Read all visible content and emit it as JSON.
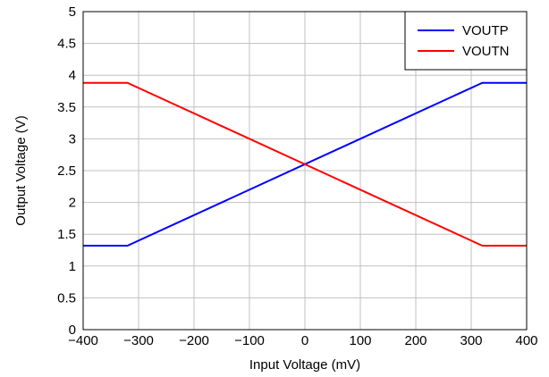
{
  "chart_data": {
    "type": "line",
    "xlabel": "Input Voltage (mV)",
    "ylabel": "Output Voltage (V)",
    "xlim": [
      -400,
      400
    ],
    "ylim": [
      0,
      5
    ],
    "x_ticks": [
      -400,
      -300,
      -200,
      -100,
      0,
      100,
      200,
      300,
      400
    ],
    "x_tick_labels": [
      "−400",
      "−300",
      "−200",
      "−100",
      "0",
      "100",
      "200",
      "300",
      "400"
    ],
    "y_ticks": [
      0,
      0.5,
      1,
      1.5,
      2,
      2.5,
      3,
      3.5,
      4,
      4.5,
      5
    ],
    "y_tick_labels": [
      "0",
      "0.5",
      "1",
      "1.5",
      "2",
      "2.5",
      "3",
      "3.5",
      "4",
      "4.5",
      "5"
    ],
    "grid": true,
    "legend_position": "top-right",
    "series": [
      {
        "name": "VOUTP",
        "color": "#0000ff",
        "x": [
          -400,
          -320,
          320,
          400
        ],
        "y": [
          1.32,
          1.32,
          3.88,
          3.88
        ]
      },
      {
        "name": "VOUTN",
        "color": "#ff0000",
        "x": [
          -400,
          -320,
          320,
          400
        ],
        "y": [
          3.88,
          3.88,
          1.32,
          1.32
        ]
      }
    ]
  }
}
